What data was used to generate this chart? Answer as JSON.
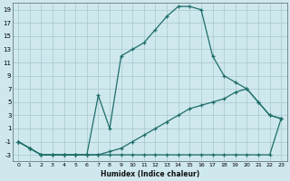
{
  "xlabel": "Humidex (Indice chaleur)",
  "bg_color": "#cee8ee",
  "grid_color": "#a8c8cc",
  "line_color": "#1e6e6a",
  "xlim": [
    -0.5,
    23.5
  ],
  "ylim": [
    -4,
    20
  ],
  "xticks": [
    0,
    1,
    2,
    3,
    4,
    5,
    6,
    7,
    8,
    9,
    10,
    11,
    12,
    13,
    14,
    15,
    16,
    17,
    18,
    19,
    20,
    21,
    22,
    23
  ],
  "yticks": [
    -3,
    -1,
    1,
    3,
    5,
    7,
    9,
    11,
    13,
    15,
    17,
    19
  ],
  "line1_x": [
    0,
    1,
    2,
    3,
    4,
    5,
    6,
    7,
    8,
    9,
    10,
    11,
    12,
    13,
    14,
    15,
    16,
    17,
    18,
    19,
    20,
    21,
    22,
    23
  ],
  "line1_y": [
    -1,
    -2,
    -3,
    -3,
    -3,
    -3,
    -3,
    -3,
    -3,
    -3,
    -3,
    -3,
    -3,
    -3,
    -3,
    -3,
    -3,
    -3,
    -3,
    -3,
    -3,
    -3,
    -3,
    2.5
  ],
  "line2_x": [
    0,
    1,
    2,
    3,
    4,
    5,
    6,
    7,
    8,
    9,
    10,
    11,
    12,
    13,
    14,
    15,
    16,
    17,
    18,
    19,
    20,
    21,
    22,
    23
  ],
  "line2_y": [
    -1,
    -2,
    -3,
    -3,
    -3,
    -3,
    -3,
    -3,
    -2.5,
    -2,
    -1,
    0,
    1,
    2,
    3,
    4,
    4.5,
    5,
    5.5,
    6.5,
    7,
    5,
    3,
    2.5
  ],
  "line3_x": [
    0,
    1,
    2,
    3,
    4,
    5,
    6,
    7,
    8,
    9,
    10,
    11,
    12,
    13,
    14,
    15,
    16,
    17,
    18,
    19,
    20,
    21,
    22,
    23
  ],
  "line3_y": [
    -1,
    -2,
    -3,
    -3,
    -3,
    -3,
    -3,
    6,
    1,
    12,
    13,
    14,
    16,
    18,
    19.5,
    19.5,
    19,
    12,
    9,
    8,
    7,
    5,
    3,
    2.5
  ]
}
